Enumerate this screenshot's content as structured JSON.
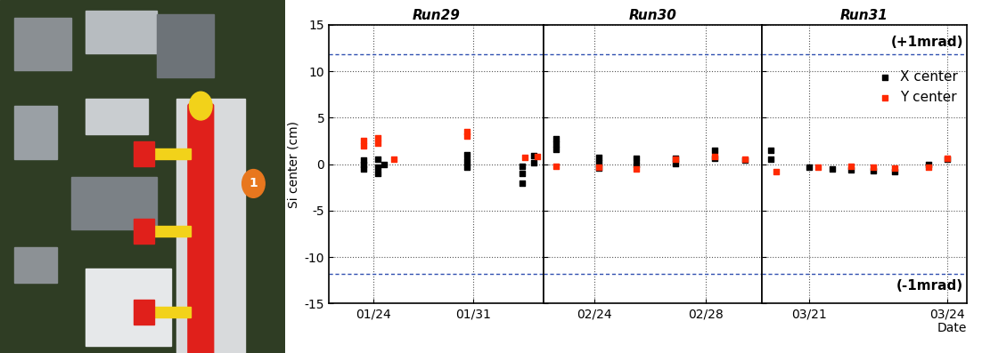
{
  "image": {
    "marker_label": "1"
  },
  "chart_data": [
    {
      "type": "scatter",
      "title": "Run29",
      "y_label": "Si center (cm)",
      "xlim": [
        20.9,
        35.9
      ],
      "xticks": [
        {
          "value": 24,
          "label": "01/24"
        },
        {
          "value": 31,
          "label": "01/31"
        }
      ],
      "ylim": [
        -15,
        15
      ],
      "yticks": [
        -15,
        -10,
        -5,
        0,
        5,
        10,
        15
      ],
      "grid": true,
      "marker": "square",
      "reference_lines": [
        {
          "value": 11.8
        },
        {
          "value": -11.8
        }
      ],
      "series": [
        {
          "color": "#000000",
          "x": [
            23.31,
            23.31,
            23.31,
            24.33,
            24.33,
            24.33,
            24.76,
            30.54,
            30.54,
            30.54,
            34.45,
            34.45,
            34.45,
            35.24,
            35.24
          ],
          "values": [
            -0.5,
            0,
            0.4,
            -1,
            -0.3,
            0.5,
            0,
            -0.3,
            0.3,
            1,
            -2,
            -1,
            -0.2,
            0.2,
            0.9
          ]
        },
        {
          "color": "#ff2a00",
          "x": [
            23.31,
            23.31,
            24.33,
            24.33,
            25.42,
            30.54,
            30.54,
            34.63,
            35.48
          ],
          "values": [
            2,
            2.5,
            2.3,
            2.8,
            0.5,
            3,
            3.5,
            0.7,
            0.8
          ]
        }
      ]
    },
    {
      "type": "scatter",
      "title": "Run30",
      "xlim": [
        53.15,
        61.0
      ],
      "xticks": [
        {
          "value": 55,
          "label": "02/24"
        },
        {
          "value": 59,
          "label": "02/28"
        }
      ],
      "ylim": [
        -15,
        15
      ],
      "yticks": [
        -15,
        -10,
        -5,
        0,
        5,
        10,
        15
      ],
      "grid": true,
      "marker": "square",
      "tick_labels": "x",
      "reference_lines": [
        {
          "value": 11.8
        },
        {
          "value": -11.8
        }
      ],
      "series": [
        {
          "color": "#000000",
          "x": [
            53.6,
            53.6,
            53.6,
            55.15,
            55.15,
            55.15,
            56.5,
            56.5,
            57.9,
            57.9,
            59.3,
            59.3,
            60.4
          ],
          "values": [
            1.6,
            2.2,
            2.7,
            -0.4,
            0.2,
            0.7,
            0,
            0.6,
            0.1,
            0.6,
            0.6,
            1.5,
            0.4
          ]
        },
        {
          "color": "#ff2a00",
          "x": [
            53.6,
            55.15,
            56.5,
            57.9,
            59.3,
            60.4
          ],
          "values": [
            -0.2,
            -0.3,
            -0.5,
            0.5,
            0.8,
            0.5
          ]
        }
      ]
    },
    {
      "type": "scatter",
      "title": "Run31",
      "x_label": "Date",
      "xlim": [
        78.98,
        83.43
      ],
      "xticks": [
        {
          "value": 80,
          "label": "03/21"
        },
        {
          "value": 83,
          "label": "03/24"
        }
      ],
      "ylim": [
        -15,
        15
      ],
      "yticks": [
        -15,
        -10,
        -5,
        0,
        5,
        10,
        15
      ],
      "grid": true,
      "marker": "square",
      "tick_labels": "x",
      "legend": "upper right",
      "reference_lines": [
        {
          "value": 11.8,
          "label": "(+1mrad)"
        },
        {
          "value": -11.8,
          "label": "(-1mrad)"
        }
      ],
      "series": [
        {
          "name": "X center",
          "color": "#000000",
          "x": [
            79.17,
            79.17,
            80.0,
            80.5,
            80.92,
            81.4,
            81.85,
            82.59,
            83.0
          ],
          "values": [
            0.5,
            1.5,
            -0.3,
            -0.5,
            -0.6,
            -0.7,
            -0.8,
            0,
            0.5
          ]
        },
        {
          "name": "Y center",
          "color": "#ff2a00",
          "x": [
            79.3,
            80.2,
            80.92,
            81.4,
            81.85,
            82.59,
            83.0
          ],
          "values": [
            -0.8,
            -0.3,
            -0.2,
            -0.3,
            -0.4,
            -0.3,
            0.6
          ]
        }
      ]
    }
  ]
}
